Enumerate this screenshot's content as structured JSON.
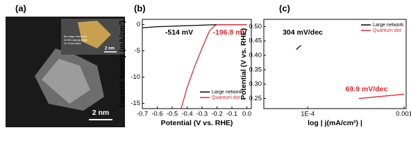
{
  "chart_data": [
    {
      "type": "image",
      "panel_label": "(a)",
      "scale_bar": "2 nm",
      "inset_scale_bar": "2 nm",
      "inset_text": [
        "Mo edge dominant",
        "44 Mo zigzag edge",
        "12 S-Mo sites"
      ]
    },
    {
      "type": "line",
      "panel_label": "(b)",
      "x_label": "Potential (V vs. RHE)",
      "y_label": "Current density (mA/cm²)",
      "xlim": [
        -0.7,
        0.03
      ],
      "ylim": [
        -16,
        1
      ],
      "log_x": false,
      "xticks": [
        -0.7,
        -0.6,
        -0.5,
        -0.4,
        -0.3,
        -0.2,
        -0.1,
        {
          "value": 0,
          "label": "0.0"
        }
      ],
      "yticks": [
        0,
        -5,
        -10,
        -15
      ],
      "annotations": [
        {
          "text": "-514 mV",
          "color": "#000000"
        },
        {
          "text": "-196.8 mV",
          "color": "#e8232a"
        }
      ],
      "legend": "lower right",
      "series": [
        {
          "name": "Large network",
          "color": "#000000",
          "x": [
            -0.7,
            -0.6,
            -0.5,
            -0.4,
            -0.3,
            -0.2,
            0
          ],
          "values": [
            -0.6,
            -0.4,
            -0.3,
            -0.2,
            -0.1,
            0,
            0
          ]
        },
        {
          "name": "Quantum dot",
          "color": "#e8232a",
          "x": [
            -0.44,
            -0.4,
            -0.35,
            -0.3,
            -0.27,
            -0.25,
            -0.22,
            -0.2,
            0
          ],
          "values": [
            -16,
            -12,
            -8,
            -4.5,
            -2.5,
            -1.2,
            -0.3,
            0,
            0
          ]
        }
      ]
    },
    {
      "type": "line",
      "panel_label": "(c)",
      "x_label": "log | j(mA/cm²) |",
      "y_label": "Potential (V vs. RHE)",
      "xlim": [
        3.5e-05,
        0.00105
      ],
      "ylim": [
        0.215,
        0.525
      ],
      "log_x": true,
      "xticks": [
        {
          "value": 0.0001,
          "label": "1E-4"
        },
        0.001
      ],
      "yticks": [
        0.25,
        {
          "value": 0.3,
          "label": "0.30"
        },
        0.35,
        {
          "value": 0.4,
          "label": "0.40"
        },
        0.45,
        {
          "value": 0.5,
          "label": "0.50"
        }
      ],
      "annotations": [
        {
          "text": "304 mV/dec",
          "color": "#000000"
        },
        {
          "text": "69.9 mV/dec",
          "color": "#e8232a"
        }
      ],
      "legend": "upper right",
      "series": [
        {
          "name": "Large network",
          "color": "#000000",
          "x": [
            7.6e-05,
            8.5e-05
          ],
          "values": [
            0.42,
            0.435
          ]
        },
        {
          "name": "Quantum dot",
          "color": "#e8232a",
          "x": [
            0.00034,
            0.001
          ],
          "values": [
            0.25,
            0.265
          ]
        }
      ]
    }
  ]
}
